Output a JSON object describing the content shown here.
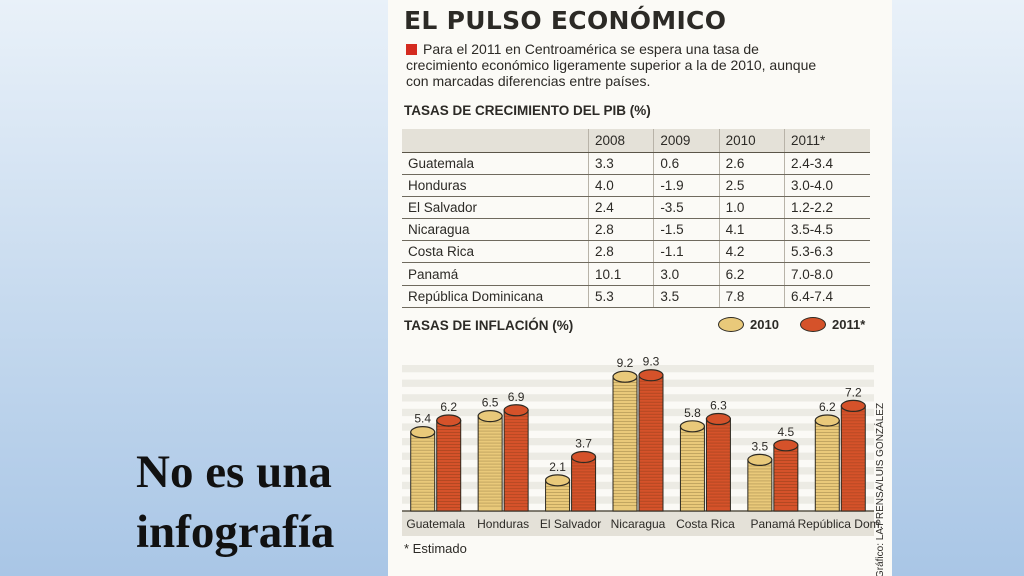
{
  "slide": {
    "caption": "No es una infografía"
  },
  "infographic": {
    "title": "EL PULSO ECONÓMICO",
    "intro": "Para el 2011 en Centroamérica se espera una tasa de crecimiento económico ligeramente superior a la de 2010, aunque con marcadas diferencias entre países.",
    "gdp_section_title": "TASAS DE CRECIMIENTO DEL PIB (%)",
    "inflation_section_title": "TASAS DE INFLACIÓN (%)",
    "legend": {
      "label_2010": "2010",
      "label_2011": "2011*"
    },
    "footnote": "* Estimado",
    "credit": "Gráfico: LA PRENSA/LUIS GONZÁLEZ",
    "colors": {
      "coin_2010": "#e9c97a",
      "coin_2011": "#d5522a",
      "accent_red": "#d42a1f",
      "panel_bg": "#fbfaf6"
    }
  },
  "chart_data": [
    {
      "type": "table",
      "title": "TASAS DE CRECIMIENTO DEL PIB (%)",
      "columns": [
        "",
        "2008",
        "2009",
        "2010",
        "2011*"
      ],
      "rows": [
        [
          "Guatemala",
          "3.3",
          "0.6",
          "2.6",
          "2.4-3.4"
        ],
        [
          "Honduras",
          "4.0",
          "-1.9",
          "2.5",
          "3.0-4.0"
        ],
        [
          "El Salvador",
          "2.4",
          "-3.5",
          "1.0",
          "1.2-2.2"
        ],
        [
          "Nicaragua",
          "2.8",
          "-1.5",
          "4.1",
          "3.5-4.5"
        ],
        [
          "Costa Rica",
          "2.8",
          "-1.1",
          "4.2",
          "5.3-6.3"
        ],
        [
          "Panamá",
          "10.1",
          "3.0",
          "6.2",
          "7.0-8.0"
        ],
        [
          "República Dominicana",
          "5.3",
          "3.5",
          "7.8",
          "6.4-7.4"
        ]
      ]
    },
    {
      "type": "bar",
      "title": "TASAS DE INFLACIÓN (%)",
      "categories": [
        "Guatemala",
        "Honduras",
        "El Salvador",
        "Nicaragua",
        "Costa Rica",
        "Panamá",
        "República Dom."
      ],
      "series": [
        {
          "name": "2010",
          "values": [
            5.4,
            6.5,
            2.1,
            9.2,
            5.8,
            3.5,
            6.2
          ]
        },
        {
          "name": "2011*",
          "values": [
            6.2,
            6.9,
            3.7,
            9.3,
            6.3,
            4.5,
            7.2
          ]
        }
      ],
      "ylim": [
        0,
        10
      ],
      "grid": true,
      "legend": "top-right"
    }
  ]
}
